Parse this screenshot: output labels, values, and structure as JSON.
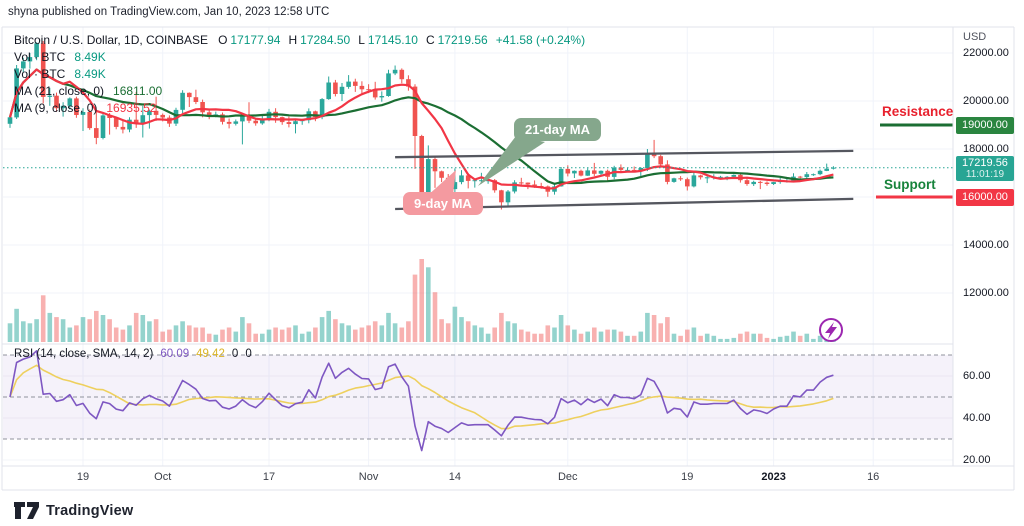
{
  "header": {
    "published_line": "shyna published on TradingView.com, Jan 10, 2023 12:58 UTC"
  },
  "legend": {
    "symbol": "Bitcoin / U.S. Dollar, 1D, COINBASE",
    "o_label": "O",
    "o": "17177.94",
    "h_label": "H",
    "h": "17284.50",
    "l_label": "L",
    "l": "17145.10",
    "c_label": "C",
    "c": "17219.56",
    "change": "+41.58 (+0.24%)",
    "vol1_label": "Vol · BTC",
    "vol1_value": "8.49K",
    "vol2_label": "Vol · BTC",
    "vol2_value": "8.49K",
    "ma21_label": "MA (21, close, 0)",
    "ma21_value": "16811.00",
    "ma9_label": "MA (9, close, 0)",
    "ma9_value": "16935.52"
  },
  "rsi_legend": {
    "label": "RSI (14, close, SMA, 14, 2)",
    "rsi_value": "60.09",
    "ma_value": "49.42",
    "zero1": "0",
    "zero2": "0"
  },
  "annotations": {
    "ma21_bubble": "21-day MA",
    "ma9_bubble": "9-day MA",
    "resistance": "Resistance",
    "support": "Support"
  },
  "price_scale": {
    "currency": "USD",
    "labels": [
      {
        "text": "22000.00",
        "price": 22000
      },
      {
        "text": "20000.00",
        "price": 20000
      },
      {
        "text": "18000.00",
        "price": 18000
      },
      {
        "text": "14000.00",
        "price": 14000
      },
      {
        "text": "12000.00",
        "price": 12000
      }
    ],
    "resistance_badge": "19000.00",
    "support_badge": "16000.00",
    "last_price": "17219.56",
    "countdown": "11:01:19"
  },
  "rsi_scale": {
    "labels": [
      {
        "text": "60.00",
        "value": 60
      },
      {
        "text": "40.00",
        "value": 40
      },
      {
        "text": "20.00",
        "value": 20
      }
    ]
  },
  "footer": {
    "brand": "TradingView"
  },
  "colors": {
    "up": "#2aa79b",
    "down": "#f0534f",
    "vol_up": "rgba(42,167,155,0.5)",
    "vol_down": "rgba(240,83,79,0.45)",
    "ma21": "#1b6e33",
    "ma9": "#f23645",
    "rsi": "#7e57c2",
    "rsi_ma": "#eed05e",
    "channel": "#55575f",
    "last_line": "#27a695",
    "grid": "#f0f3fa",
    "border": "#e0e3eb",
    "dash": "#90939c",
    "bubble_green": "#85a78c",
    "bubble_pink": "#f49aa0",
    "flash": "#9c27b0"
  },
  "chart_data": {
    "type": "candlestick",
    "title": "Bitcoin / U.S. Dollar",
    "interval": "1D",
    "exchange": "COINBASE",
    "last_bar": {
      "o": 17177.94,
      "h": 17284.5,
      "l": 17145.1,
      "c": 17219.56,
      "change": 41.58,
      "change_pct": 0.24
    },
    "price_axis": {
      "currency": "USD",
      "grid": [
        22000,
        20000,
        18000,
        16000,
        14000,
        12000
      ],
      "resistance": 19000,
      "support": 16000,
      "last_price": 17219.56
    },
    "rsi_axis": {
      "ticks": [
        60,
        40,
        20
      ],
      "band": [
        30,
        70
      ],
      "mid": 50,
      "rsi_last": 60.09,
      "rsi_ma_last": 49.42
    },
    "indicators": {
      "ma_slow_period": 21,
      "ma_fast_period": 9,
      "ma_slow_last": 16811.0,
      "ma_fast_last": 16935.52,
      "rsi_period": 14,
      "rsi_ma_period": 14
    },
    "channel": {
      "top": {
        "i": [
          58,
          127
        ],
        "p": [
          17660,
          17920
        ]
      },
      "bottom": {
        "i": [
          58,
          127
        ],
        "p": [
          15500,
          15920
        ]
      }
    },
    "time_ticks": [
      {
        "label": "19",
        "i": 11
      },
      {
        "label": "Oct",
        "i": 23
      },
      {
        "label": "17",
        "i": 39
      },
      {
        "label": "Nov",
        "i": 54
      },
      {
        "label": "14",
        "i": 67
      },
      {
        "label": "Dec",
        "i": 84
      },
      {
        "label": "19",
        "i": 102
      },
      {
        "label": "2023",
        "i": 115,
        "bold": true
      },
      {
        "label": "16",
        "i": 130
      }
    ],
    "candles_format": [
      "open",
      "high",
      "low",
      "close",
      "volume_kbtc"
    ],
    "candles": [
      [
        19050,
        19450,
        18880,
        19320,
        18
      ],
      [
        19320,
        21500,
        19250,
        21360,
        32
      ],
      [
        21360,
        21800,
        21200,
        21650,
        20
      ],
      [
        21650,
        22000,
        21350,
        21830,
        18
      ],
      [
        21830,
        22450,
        21700,
        22400,
        22
      ],
      [
        22400,
        22500,
        19900,
        20170,
        45
      ],
      [
        20170,
        20550,
        19800,
        20220,
        28
      ],
      [
        20220,
        20350,
        19550,
        19700,
        24
      ],
      [
        19700,
        19950,
        19350,
        19800,
        22
      ],
      [
        19800,
        20150,
        19650,
        20110,
        14
      ],
      [
        20110,
        20180,
        19300,
        19420,
        16
      ],
      [
        19420,
        19700,
        18750,
        19540,
        24
      ],
      [
        19540,
        19650,
        18800,
        18870,
        22
      ],
      [
        18870,
        19550,
        18200,
        18460,
        30
      ],
      [
        18460,
        19500,
        18400,
        19400,
        26
      ],
      [
        19400,
        19500,
        18600,
        19290,
        22
      ],
      [
        19290,
        19320,
        18820,
        18920,
        14
      ],
      [
        18920,
        19190,
        18650,
        18810,
        12
      ],
      [
        18810,
        19320,
        18700,
        19220,
        16
      ],
      [
        19220,
        20380,
        18880,
        19080,
        28
      ],
      [
        19080,
        19790,
        18480,
        19410,
        26
      ],
      [
        19410,
        19640,
        18850,
        19590,
        20
      ],
      [
        19590,
        20180,
        19170,
        19420,
        22
      ],
      [
        19420,
        19480,
        19150,
        19310,
        10
      ],
      [
        19310,
        19400,
        18920,
        19060,
        12
      ],
      [
        19060,
        19720,
        18960,
        19630,
        16
      ],
      [
        19630,
        20450,
        19500,
        20340,
        20
      ],
      [
        20340,
        20360,
        19750,
        20160,
        16
      ],
      [
        20160,
        20470,
        19870,
        19960,
        14
      ],
      [
        19960,
        20060,
        19320,
        19530,
        14
      ],
      [
        19530,
        19630,
        19240,
        19420,
        8
      ],
      [
        19420,
        19560,
        19320,
        19440,
        7
      ],
      [
        19440,
        19520,
        19020,
        19130,
        12
      ],
      [
        19130,
        19270,
        18860,
        19050,
        14
      ],
      [
        19050,
        19230,
        18980,
        19150,
        10
      ],
      [
        19150,
        19510,
        18190,
        19380,
        24
      ],
      [
        19380,
        19950,
        19080,
        19180,
        18
      ],
      [
        19180,
        19230,
        18970,
        19070,
        8
      ],
      [
        19070,
        19420,
        19010,
        19260,
        8
      ],
      [
        19260,
        19670,
        19160,
        19550,
        12
      ],
      [
        19550,
        19700,
        19090,
        19330,
        14
      ],
      [
        19330,
        19350,
        19010,
        19120,
        12
      ],
      [
        19120,
        19350,
        18900,
        19040,
        14
      ],
      [
        19040,
        19250,
        18650,
        19160,
        16
      ],
      [
        19160,
        19260,
        19010,
        19200,
        8
      ],
      [
        19200,
        19690,
        19070,
        19570,
        10
      ],
      [
        19570,
        19600,
        19160,
        19330,
        14
      ],
      [
        19330,
        20120,
        19240,
        20080,
        24
      ],
      [
        20080,
        21020,
        20050,
        20770,
        30
      ],
      [
        20770,
        20880,
        20190,
        20290,
        22
      ],
      [
        20290,
        20750,
        20000,
        20590,
        18
      ],
      [
        20590,
        21080,
        20510,
        20810,
        16
      ],
      [
        20810,
        20930,
        20380,
        20630,
        12
      ],
      [
        20630,
        20820,
        20240,
        20490,
        14
      ],
      [
        20490,
        20700,
        20330,
        20480,
        16
      ],
      [
        20480,
        20800,
        20060,
        20150,
        20
      ],
      [
        20150,
        20400,
        19970,
        20210,
        16
      ],
      [
        20210,
        21300,
        20180,
        21150,
        28
      ],
      [
        21150,
        21480,
        21080,
        21300,
        18
      ],
      [
        21300,
        21360,
        20740,
        20910,
        14
      ],
      [
        20910,
        21070,
        20430,
        20600,
        20
      ],
      [
        20600,
        20700,
        17170,
        18540,
        65
      ],
      [
        18540,
        18590,
        15590,
        15880,
        80
      ],
      [
        15880,
        18150,
        15790,
        17580,
        72
      ],
      [
        17580,
        17720,
        16380,
        17070,
        48
      ],
      [
        17070,
        17100,
        16620,
        16800,
        22
      ],
      [
        16800,
        16960,
        16230,
        16330,
        18
      ],
      [
        16330,
        17190,
        15820,
        16620,
        34
      ],
      [
        16620,
        17120,
        16530,
        16900,
        24
      ],
      [
        16900,
        16990,
        16360,
        16670,
        20
      ],
      [
        16670,
        16750,
        16390,
        16700,
        16
      ],
      [
        16700,
        17010,
        16560,
        16700,
        14
      ],
      [
        16700,
        16800,
        16550,
        16700,
        8
      ],
      [
        16700,
        16750,
        16180,
        16280,
        14
      ],
      [
        16280,
        16300,
        15480,
        15780,
        28
      ],
      [
        15780,
        16290,
        15620,
        16230,
        20
      ],
      [
        16230,
        16700,
        16150,
        16610,
        18
      ],
      [
        16610,
        16800,
        16460,
        16600,
        12
      ],
      [
        16600,
        16610,
        16330,
        16520,
        10
      ],
      [
        16520,
        16690,
        16380,
        16460,
        8
      ],
      [
        16460,
        16590,
        16340,
        16440,
        8
      ],
      [
        16440,
        16480,
        16010,
        16220,
        16
      ],
      [
        16220,
        16550,
        16100,
        16440,
        14
      ],
      [
        16440,
        17250,
        16430,
        17170,
        26
      ],
      [
        17170,
        17320,
        16860,
        16980,
        16
      ],
      [
        16980,
        17110,
        16790,
        17090,
        12
      ],
      [
        17090,
        17140,
        16860,
        16890,
        8
      ],
      [
        16890,
        17200,
        16880,
        17110,
        10
      ],
      [
        17110,
        17420,
        16870,
        16970,
        14
      ],
      [
        16970,
        17110,
        16910,
        17090,
        10
      ],
      [
        17090,
        17140,
        16680,
        16840,
        12
      ],
      [
        16840,
        17300,
        16740,
        17230,
        12
      ],
      [
        17230,
        17360,
        17050,
        17130,
        10
      ],
      [
        17130,
        17230,
        17060,
        17130,
        6
      ],
      [
        17130,
        17270,
        17070,
        17090,
        6
      ],
      [
        17090,
        17240,
        16870,
        17210,
        10
      ],
      [
        17210,
        18000,
        17080,
        17780,
        28
      ],
      [
        17780,
        18380,
        17620,
        17700,
        26
      ],
      [
        17700,
        17760,
        17280,
        17360,
        18
      ],
      [
        17360,
        17530,
        16530,
        16630,
        24
      ],
      [
        16630,
        16800,
        16590,
        16780,
        8
      ],
      [
        16780,
        16870,
        16670,
        16740,
        6
      ],
      [
        16740,
        16810,
        16270,
        16440,
        12
      ],
      [
        16440,
        17030,
        16400,
        16900,
        14
      ],
      [
        16900,
        16930,
        16730,
        16820,
        6
      ],
      [
        16820,
        16870,
        16580,
        16820,
        8
      ],
      [
        16820,
        16950,
        16730,
        16840,
        6
      ],
      [
        16840,
        16880,
        16790,
        16840,
        3
      ],
      [
        16840,
        16870,
        16700,
        16840,
        3
      ],
      [
        16840,
        16940,
        16760,
        16920,
        4
      ],
      [
        16920,
        16990,
        16600,
        16700,
        8
      ],
      [
        16700,
        16790,
        16470,
        16540,
        10
      ],
      [
        16540,
        16680,
        16460,
        16630,
        8
      ],
      [
        16630,
        16670,
        16330,
        16600,
        8
      ],
      [
        16600,
        16650,
        16470,
        16540,
        4
      ],
      [
        16540,
        16630,
        16500,
        16620,
        3
      ],
      [
        16620,
        16800,
        16550,
        16670,
        5
      ],
      [
        16670,
        16780,
        16600,
        16670,
        6
      ],
      [
        16670,
        16990,
        16650,
        16850,
        10
      ],
      [
        16850,
        16880,
        16750,
        16830,
        6
      ],
      [
        16830,
        17040,
        16680,
        16950,
        8
      ],
      [
        16950,
        16980,
        16880,
        16950,
        3
      ],
      [
        16950,
        17140,
        16910,
        17090,
        6
      ],
      [
        17090,
        17390,
        17080,
        17180,
        12
      ],
      [
        17177.94,
        17284.5,
        17145.1,
        17219.56,
        8.49
      ]
    ]
  }
}
